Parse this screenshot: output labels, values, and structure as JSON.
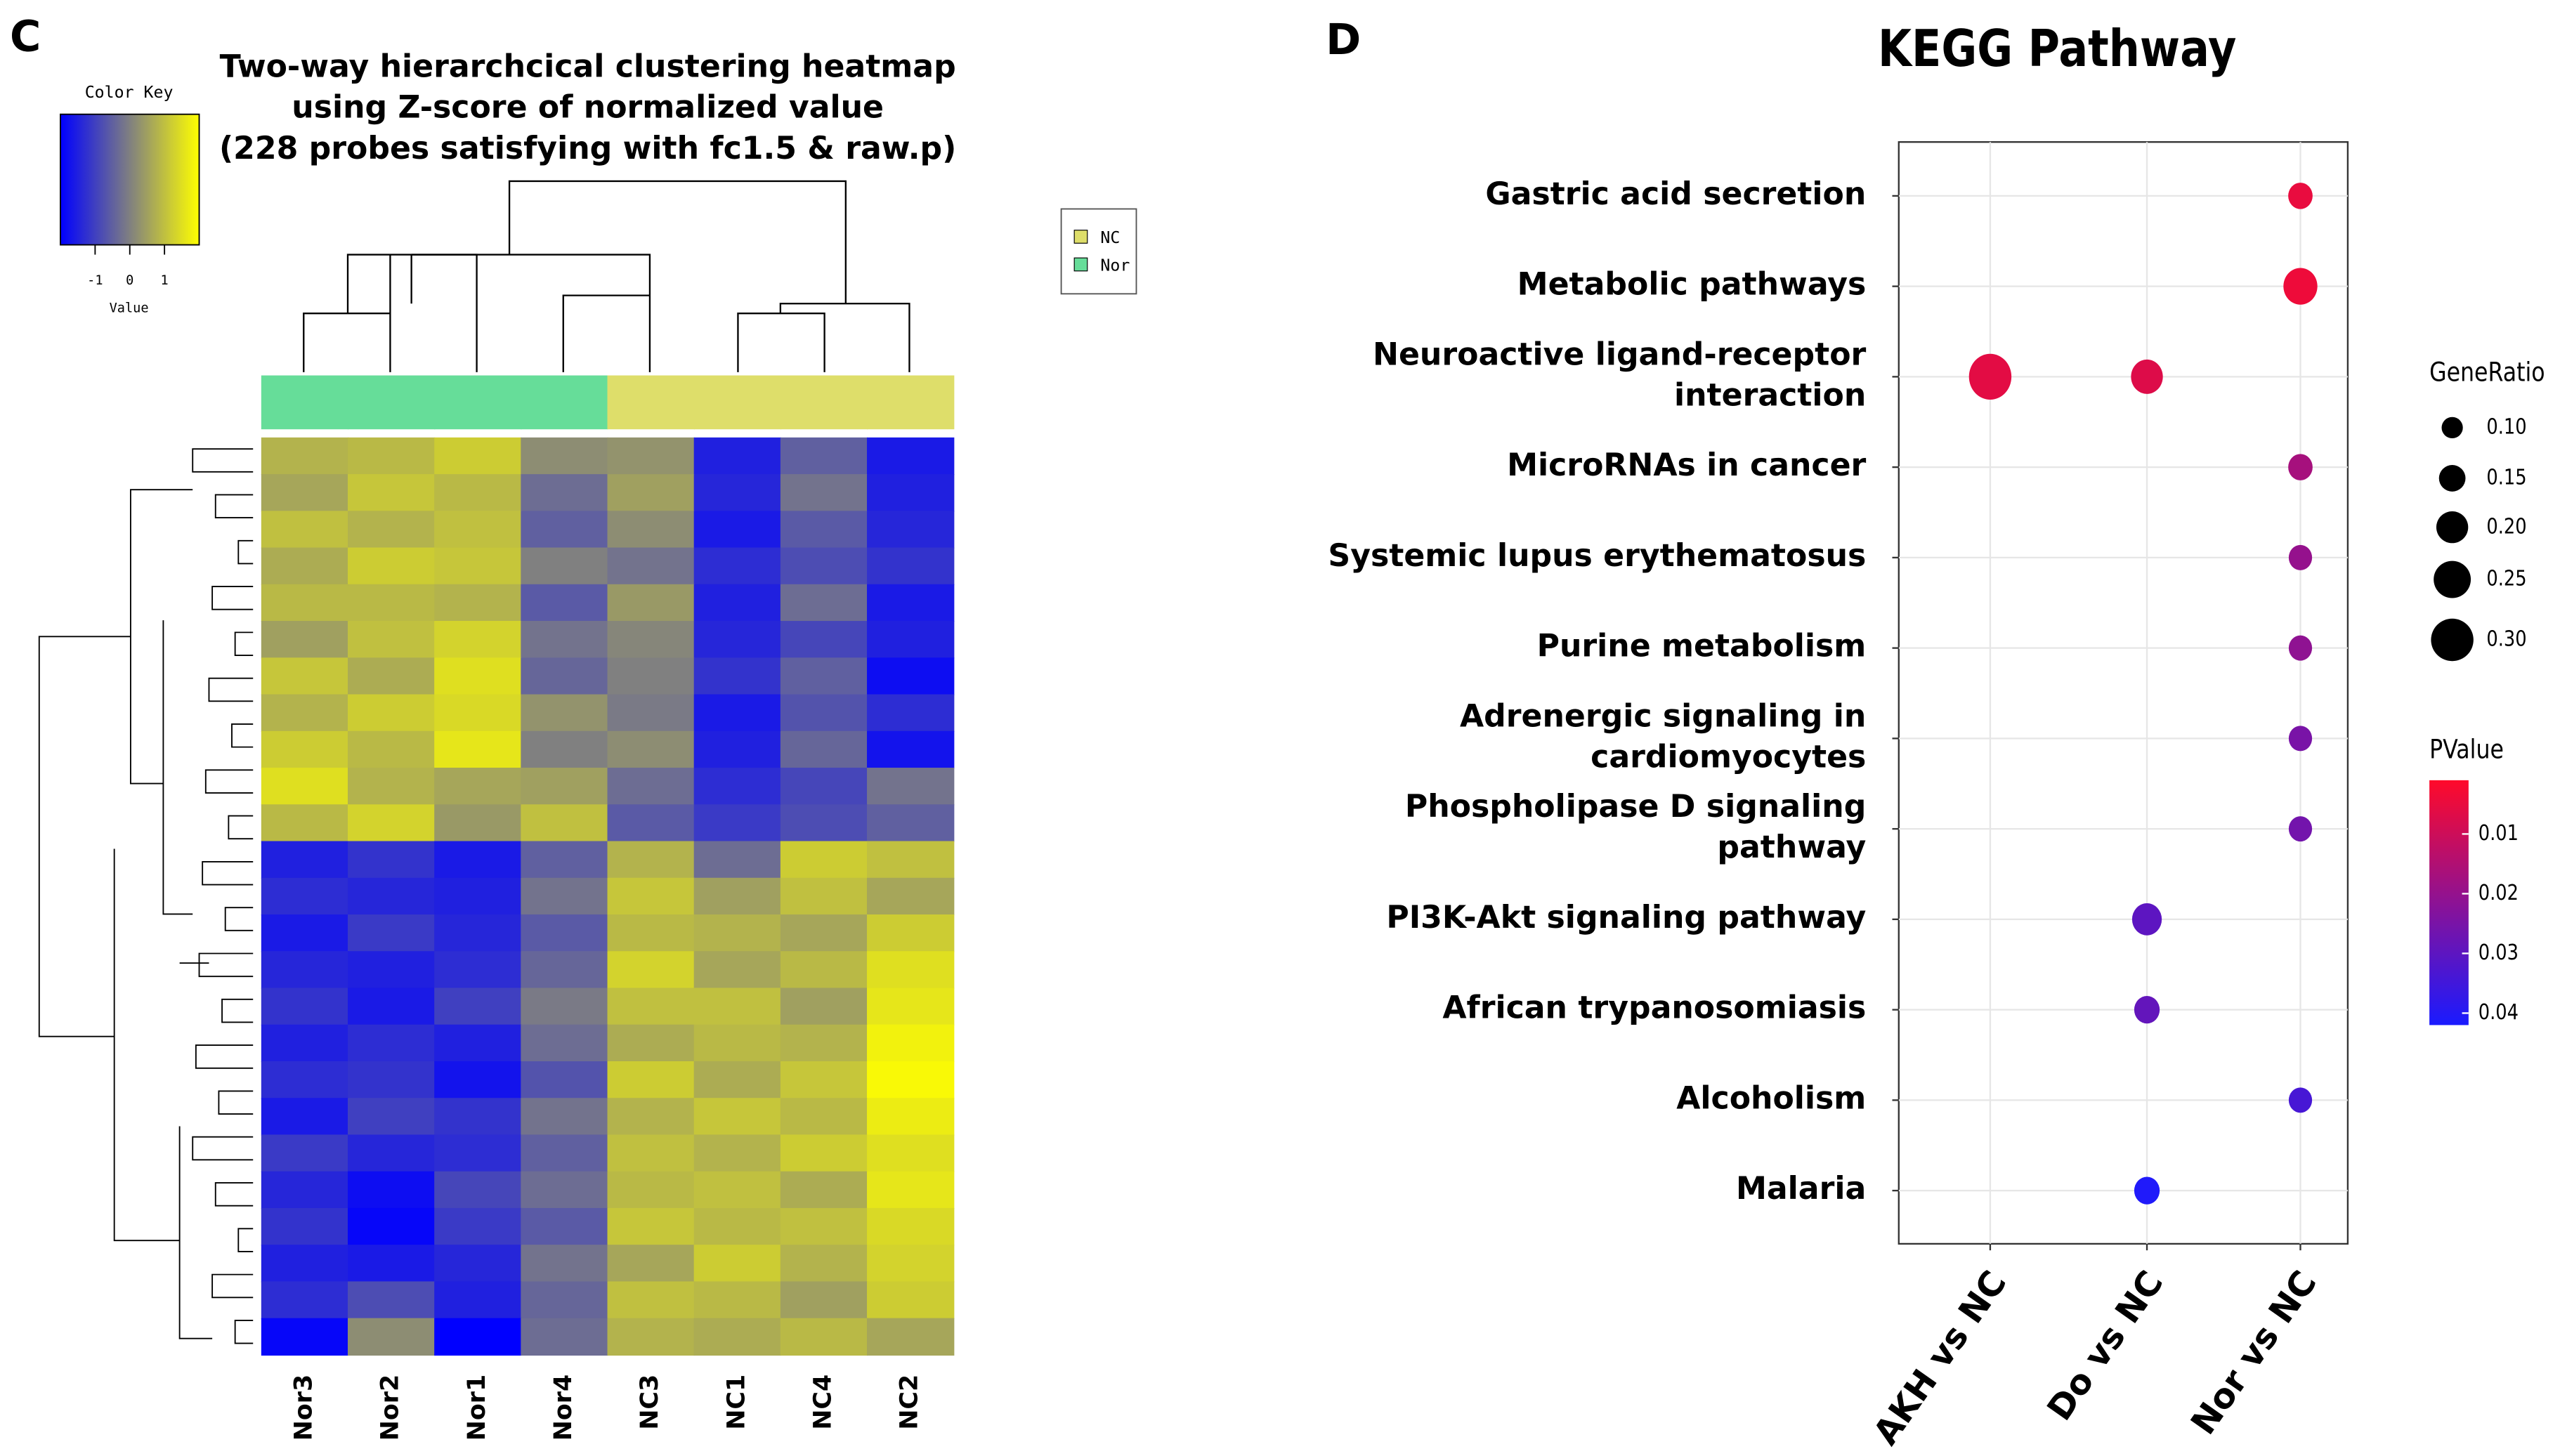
{
  "chart_data": [
    {
      "type": "heatmap",
      "panel": "C",
      "title": [
        "Two-way hierarchcical clustering heatmap",
        "using Z-score of normalized value",
        "(228 probes satisfying with fc1.5 & raw.p)"
      ],
      "columns": [
        "Nor3",
        "Nor2",
        "Nor1",
        "Nor4",
        "NC3",
        "NC1",
        "NC4",
        "NC2"
      ],
      "column_groups": [
        "Nor",
        "Nor",
        "Nor",
        "Nor",
        "NC",
        "NC",
        "NC",
        "NC"
      ],
      "legend": [
        {
          "name": "NC",
          "color": "#dede6a"
        },
        {
          "name": "Nor",
          "color": "#66dd99"
        }
      ],
      "color_key": {
        "title": "Color Key",
        "label": "Value",
        "clim": [
          -2,
          2
        ],
        "ticks": [
          -1,
          0,
          1
        ],
        "colors": [
          "#0000ff",
          "#808080",
          "#ffff00"
        ]
      },
      "values": [
        [
          0.8,
          0.9,
          1.2,
          0.2,
          0.3,
          -1.5,
          -0.5,
          -1.6
        ],
        [
          0.6,
          1.1,
          0.9,
          -0.3,
          0.5,
          -1.4,
          -0.2,
          -1.5
        ],
        [
          1.0,
          0.8,
          1.0,
          -0.5,
          0.2,
          -1.6,
          -0.6,
          -1.4
        ],
        [
          0.7,
          1.2,
          1.1,
          0.0,
          -0.2,
          -1.3,
          -0.8,
          -1.2
        ],
        [
          0.9,
          0.9,
          0.8,
          -0.6,
          0.4,
          -1.5,
          -0.3,
          -1.6
        ],
        [
          0.5,
          1.0,
          1.3,
          -0.2,
          0.1,
          -1.4,
          -0.9,
          -1.5
        ],
        [
          1.1,
          0.7,
          1.5,
          -0.4,
          0.0,
          -1.2,
          -0.5,
          -1.8
        ],
        [
          0.8,
          1.2,
          1.4,
          0.3,
          -0.1,
          -1.6,
          -0.7,
          -1.3
        ],
        [
          1.2,
          0.9,
          1.6,
          0.0,
          0.2,
          -1.5,
          -0.4,
          -1.7
        ],
        [
          1.5,
          0.8,
          0.6,
          0.5,
          -0.3,
          -1.3,
          -0.9,
          -0.2
        ],
        [
          0.9,
          1.3,
          0.4,
          1.0,
          -0.6,
          -1.1,
          -0.8,
          -0.5
        ],
        [
          -1.5,
          -1.2,
          -1.6,
          -0.5,
          0.8,
          -0.3,
          1.2,
          1.0
        ],
        [
          -1.3,
          -1.4,
          -1.5,
          -0.2,
          1.1,
          0.5,
          1.0,
          0.6
        ],
        [
          -1.6,
          -1.1,
          -1.4,
          -0.6,
          0.9,
          0.8,
          0.6,
          1.2
        ],
        [
          -1.4,
          -1.5,
          -1.3,
          -0.4,
          1.3,
          0.6,
          0.9,
          1.5
        ],
        [
          -1.2,
          -1.6,
          -1.0,
          -0.1,
          1.0,
          1.0,
          0.5,
          1.6
        ],
        [
          -1.5,
          -1.3,
          -1.5,
          -0.3,
          0.7,
          0.9,
          0.8,
          1.8
        ],
        [
          -1.3,
          -1.2,
          -1.7,
          -0.7,
          1.2,
          0.7,
          1.1,
          1.9
        ],
        [
          -1.6,
          -1.0,
          -1.2,
          -0.2,
          0.8,
          1.1,
          0.9,
          1.7
        ],
        [
          -1.1,
          -1.4,
          -1.3,
          -0.5,
          1.0,
          0.8,
          1.2,
          1.5
        ],
        [
          -1.4,
          -1.8,
          -0.9,
          -0.3,
          0.9,
          1.0,
          0.7,
          1.6
        ],
        [
          -1.2,
          -1.9,
          -1.1,
          -0.6,
          1.1,
          0.9,
          1.0,
          1.4
        ],
        [
          -1.5,
          -1.6,
          -1.4,
          -0.2,
          0.6,
          1.2,
          0.8,
          1.3
        ],
        [
          -1.3,
          -0.8,
          -1.5,
          -0.4,
          1.0,
          0.9,
          0.5,
          1.2
        ],
        [
          -1.9,
          0.2,
          -2.0,
          -0.3,
          0.8,
          0.7,
          0.9,
          0.6
        ]
      ]
    },
    {
      "type": "dot",
      "panel": "D",
      "title": "KEGG Pathway",
      "categories": [
        [
          "Gastric acid secretion"
        ],
        [
          "Metabolic pathways"
        ],
        [
          "Neuroactive ligand-receptor",
          "interaction"
        ],
        [
          "MicroRNAs in cancer"
        ],
        [
          "Systemic lupus erythematosus"
        ],
        [
          "Purine metabolism"
        ],
        [
          "Adrenergic signaling in",
          "cardiomyocytes"
        ],
        [
          "Phospholipase D signaling",
          "pathway"
        ],
        [
          "PI3K-Akt signaling pathway"
        ],
        [
          "African trypanosomiasis"
        ],
        [
          "Alcoholism"
        ],
        [
          "Malaria"
        ]
      ],
      "series": [
        {
          "name": "AKH vs NC",
          "gene_ratio": [
            null,
            null,
            0.3,
            null,
            null,
            null,
            null,
            null,
            null,
            null,
            null,
            null
          ],
          "pvalue": [
            null,
            null,
            0.006,
            null,
            null,
            null,
            null,
            null,
            null,
            null,
            null,
            null
          ]
        },
        {
          "name": "Do vs NC",
          "gene_ratio": [
            null,
            null,
            0.2,
            null,
            null,
            null,
            null,
            null,
            0.18,
            0.14,
            null,
            0.14
          ],
          "pvalue": [
            null,
            null,
            0.007,
            null,
            null,
            null,
            null,
            null,
            0.03,
            0.029,
            null,
            0.041
          ]
        },
        {
          "name": "Nor vs NC",
          "gene_ratio": [
            0.13,
            0.22,
            null,
            0.13,
            0.12,
            0.12,
            0.12,
            0.12,
            null,
            null,
            0.12,
            null
          ],
          "pvalue": [
            0.005,
            0.004,
            null,
            0.017,
            0.02,
            0.021,
            0.025,
            0.026,
            null,
            null,
            0.034,
            null
          ]
        }
      ],
      "size_legend": {
        "title": "GeneRatio",
        "ticks": [
          {
            "value": 0.1,
            "label": "0.10"
          },
          {
            "value": 0.15,
            "label": "0.15"
          },
          {
            "value": 0.2,
            "label": "0.20"
          },
          {
            "value": 0.25,
            "label": "0.25"
          },
          {
            "value": 0.3,
            "label": "0.30"
          }
        ]
      },
      "color_legend": {
        "title": "PValue",
        "clim": [
          0.001,
          0.042
        ],
        "ticks": [
          0.01,
          0.02,
          0.03,
          0.04
        ],
        "colors": [
          "#ff0a2a",
          "#1a1aff"
        ]
      },
      "grid": true
    }
  ]
}
